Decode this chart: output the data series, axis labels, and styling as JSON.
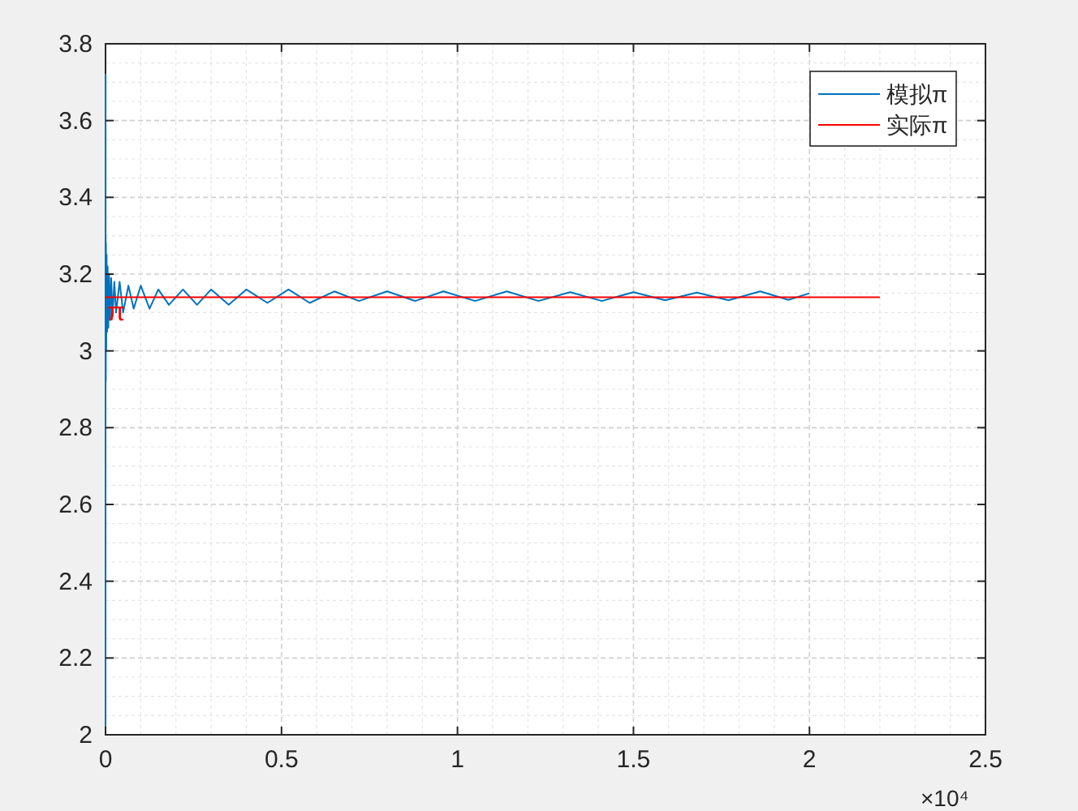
{
  "chart_data": {
    "type": "line",
    "xlim": [
      0,
      2.5
    ],
    "xticks": [
      0,
      0.5,
      1,
      1.5,
      2,
      2.5
    ],
    "ylim": [
      2,
      3.8
    ],
    "yticks": [
      2,
      2.2,
      2.4,
      2.6,
      2.8,
      3,
      3.2,
      3.4,
      3.6,
      3.8
    ],
    "grid": true,
    "legend": "top right",
    "line_style": "solid",
    "series": [
      {
        "name": "模拟π",
        "color": "#0072bd",
        "x": [
          0.0001,
          0.0002,
          0.0003,
          0.0005,
          0.0008,
          0.0012,
          0.002,
          0.003,
          0.0045,
          0.006,
          0.008,
          0.01,
          0.013,
          0.016,
          0.02,
          0.025,
          0.03,
          0.04,
          0.05,
          0.065,
          0.08,
          0.1,
          0.125,
          0.15,
          0.18,
          0.22,
          0.26,
          0.3,
          0.35,
          0.4,
          0.46,
          0.52,
          0.58,
          0.65,
          0.72,
          0.8,
          0.88,
          0.96,
          1.05,
          1.14,
          1.23,
          1.32,
          1.41,
          1.5,
          1.59,
          1.68,
          1.77,
          1.86,
          1.94,
          2.0
        ],
        "values": [
          2.0,
          3.72,
          2.93,
          3.3,
          2.92,
          3.28,
          3.0,
          3.25,
          3.05,
          3.22,
          3.06,
          3.2,
          3.08,
          3.19,
          3.09,
          3.18,
          3.1,
          3.18,
          3.1,
          3.17,
          3.11,
          3.17,
          3.11,
          3.16,
          3.12,
          3.16,
          3.12,
          3.16,
          3.12,
          3.16,
          3.125,
          3.16,
          3.125,
          3.155,
          3.13,
          3.155,
          3.13,
          3.155,
          3.13,
          3.155,
          3.13,
          3.153,
          3.13,
          3.153,
          3.132,
          3.152,
          3.132,
          3.155,
          3.133,
          3.15
        ]
      },
      {
        "name": "实际π",
        "color": "#ff0000",
        "x": [
          0,
          2.2
        ],
        "values": [
          3.14,
          3.14
        ]
      }
    ],
    "annotations": [
      {
        "text": "π",
        "x": 0.03,
        "y": 3.1
      },
      "×10⁴"
    ]
  }
}
